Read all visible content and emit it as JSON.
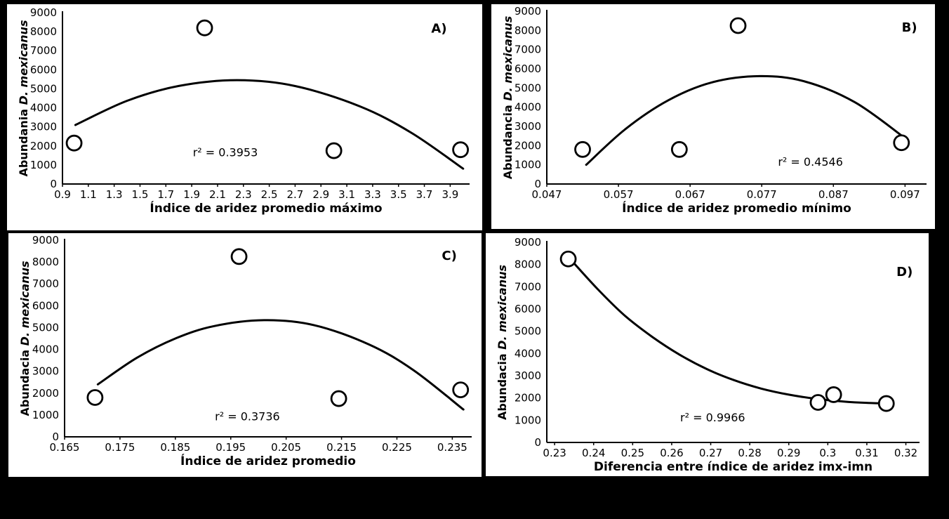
{
  "figure": {
    "background": "#000000",
    "panel_background": "#ffffff",
    "ink_color": "#000000"
  },
  "chart_data": [
    {
      "type": "scatter",
      "panel_label": "A)",
      "ylabel_prefix": "Abundania",
      "ylabel_species": "D. mexicanus",
      "xlabel": "Índice de aridez promedio máximo",
      "annotation": "r² = 0.3953",
      "annotation_pos": [
        2.16,
        1450
      ],
      "panel_label_pos": [
        0.925,
        0.06
      ],
      "xlim": [
        0.9,
        4.05
      ],
      "ylim": [
        0,
        9000
      ],
      "x_tick_labels": [
        "0.9",
        "1.1",
        "1.3",
        "1.5",
        "1.7",
        "1.9",
        "2.1",
        "2.3",
        "2.5",
        "2.7",
        "2.9",
        "3.1",
        "3.3",
        "3.5",
        "3.7",
        "3.9"
      ],
      "y_ticks": [
        0,
        1000,
        2000,
        3000,
        4000,
        5000,
        6000,
        7000,
        8000,
        9000
      ],
      "points": [
        [
          0.99,
          2150
        ],
        [
          2.0,
          8200
        ],
        [
          3.0,
          1750
        ],
        [
          3.98,
          1800
        ]
      ],
      "trend": [
        [
          1.0,
          3100
        ],
        [
          1.4,
          4370
        ],
        [
          1.8,
          5150
        ],
        [
          2.25,
          5455
        ],
        [
          2.7,
          5145
        ],
        [
          3.2,
          4080
        ],
        [
          3.6,
          2690
        ],
        [
          4.0,
          805
        ]
      ],
      "grid": "off",
      "legend": "none"
    },
    {
      "type": "scatter",
      "panel_label": "B)",
      "ylabel_prefix": "Abundancia",
      "ylabel_species": "D. mexicanus",
      "xlabel": "Índice de aridez promedio mínimo",
      "annotation": "r² = 0.4546",
      "annotation_pos": [
        0.0838,
        950
      ],
      "panel_label_pos": [
        0.955,
        0.06
      ],
      "xlim": [
        0.047,
        0.1
      ],
      "ylim": [
        0,
        9000
      ],
      "x_tick_labels": [
        "0.047",
        "0.057",
        "0.067",
        "0.077",
        "0.087",
        "0.097"
      ],
      "y_ticks": [
        0,
        1000,
        2000,
        3000,
        4000,
        5000,
        6000,
        7000,
        8000,
        9000
      ],
      "points": [
        [
          0.052,
          1800
        ],
        [
          0.0655,
          1800
        ],
        [
          0.0737,
          8250
        ],
        [
          0.0965,
          2150
        ]
      ],
      "trend": [
        [
          0.0525,
          1000
        ],
        [
          0.058,
          2870
        ],
        [
          0.064,
          4370
        ],
        [
          0.07,
          5290
        ],
        [
          0.0767,
          5620
        ],
        [
          0.083,
          5340
        ],
        [
          0.09,
          4260
        ],
        [
          0.097,
          2390
        ]
      ],
      "grid": "off",
      "legend": "none"
    },
    {
      "type": "scatter",
      "panel_label": "C)",
      "ylabel_prefix": "Abundacia",
      "ylabel_species": "D. mexicanus",
      "xlabel": "Índice de aridez  promedio",
      "annotation": "r² = 0.3736",
      "annotation_pos": [
        0.198,
        750
      ],
      "panel_label_pos": [
        0.945,
        0.05
      ],
      "xlim": [
        0.165,
        0.2385
      ],
      "ylim": [
        0,
        9000
      ],
      "x_tick_labels": [
        "0.165",
        "0.175",
        "0.185",
        "0.195",
        "0.205",
        "0.215",
        "0.225",
        "0.235"
      ],
      "y_ticks": [
        0,
        1000,
        2000,
        3000,
        4000,
        5000,
        6000,
        7000,
        8000,
        9000
      ],
      "points": [
        [
          0.1705,
          1800
        ],
        [
          0.1965,
          8250
        ],
        [
          0.2145,
          1750
        ],
        [
          0.2365,
          2150
        ]
      ],
      "trend": [
        [
          0.171,
          2400
        ],
        [
          0.178,
          3610
        ],
        [
          0.185,
          4500
        ],
        [
          0.192,
          5070
        ],
        [
          0.201,
          5340
        ],
        [
          0.21,
          5115
        ],
        [
          0.22,
          4225
        ],
        [
          0.228,
          3050
        ],
        [
          0.237,
          1250
        ]
      ],
      "grid": "off",
      "legend": "none"
    },
    {
      "type": "scatter",
      "panel_label": "D)",
      "ylabel_prefix": "Abundacia",
      "ylabel_species": "D. mexicanus",
      "xlabel": "Diferencia entre índice de aridez imx-imn",
      "annotation": "r² = 0.9966",
      "annotation_pos": [
        0.2705,
        950
      ],
      "panel_label_pos": [
        0.96,
        0.12
      ],
      "xlim": [
        0.228,
        0.3235
      ],
      "ylim": [
        0,
        9000
      ],
      "x_tick_labels": [
        "0.23",
        "0.24",
        "0.25",
        "0.26",
        "0.27",
        "0.28",
        "0.29",
        "0.3",
        "0.31",
        "0.32"
      ],
      "y_ticks": [
        0,
        1000,
        2000,
        3000,
        4000,
        5000,
        6000,
        7000,
        8000,
        9000
      ],
      "points": [
        [
          0.2335,
          8250
        ],
        [
          0.2975,
          1800
        ],
        [
          0.3015,
          2150
        ],
        [
          0.315,
          1750
        ]
      ],
      "trend": [
        [
          0.234,
          8250
        ],
        [
          0.241,
          6900
        ],
        [
          0.248,
          5700
        ],
        [
          0.255,
          4750
        ],
        [
          0.262,
          3950
        ],
        [
          0.269,
          3300
        ],
        [
          0.276,
          2800
        ],
        [
          0.283,
          2420
        ],
        [
          0.29,
          2150
        ],
        [
          0.297,
          1960
        ],
        [
          0.304,
          1840
        ],
        [
          0.31,
          1780
        ],
        [
          0.316,
          1750
        ]
      ],
      "grid": "off",
      "legend": "none"
    }
  ]
}
